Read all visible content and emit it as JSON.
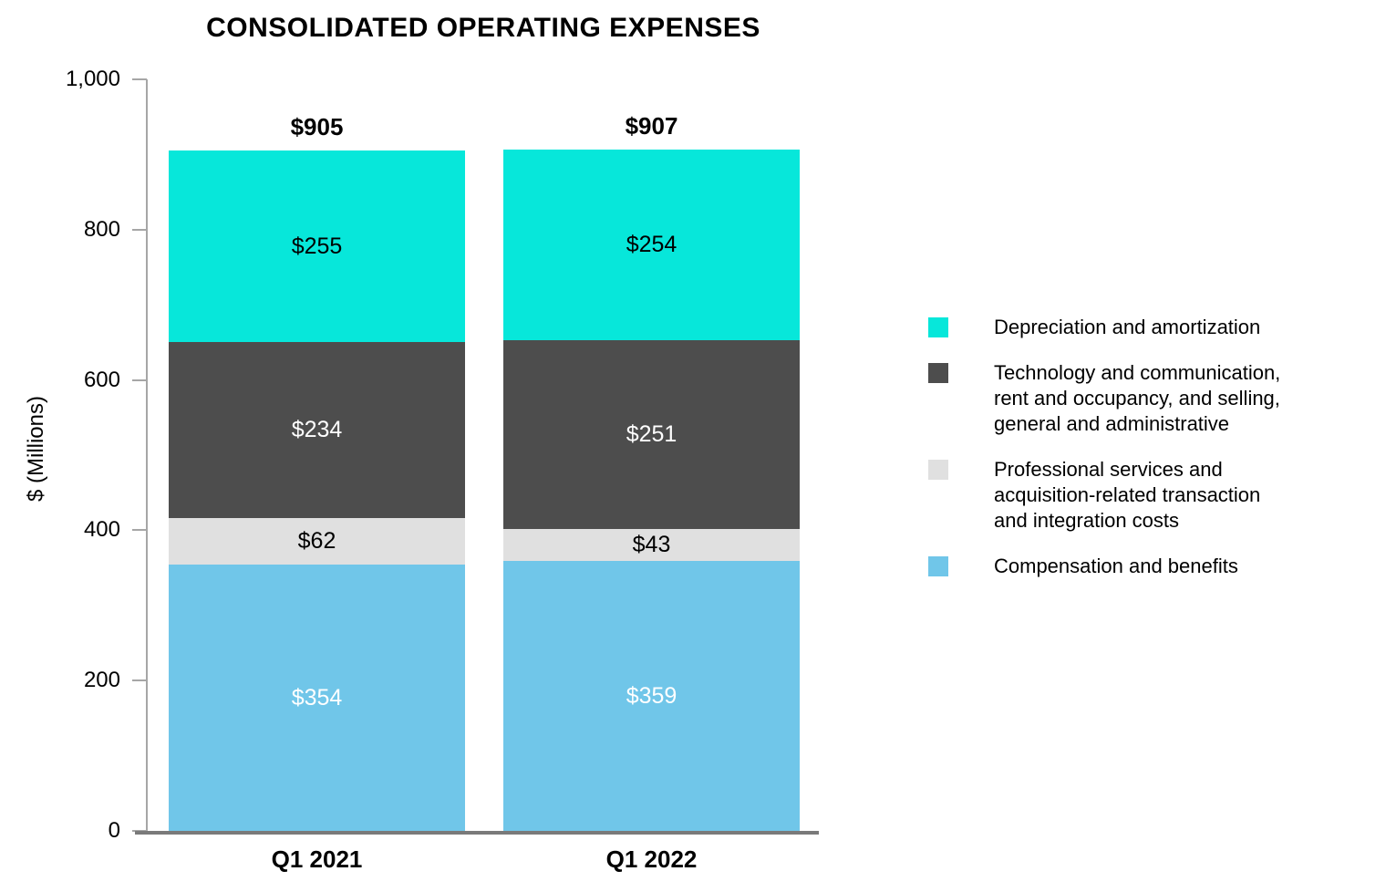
{
  "chart_data": {
    "type": "bar",
    "stacked": true,
    "title": "CONSOLIDATED OPERATING EXPENSES",
    "xlabel": "",
    "ylabel": "$ (Millions)",
    "ylim": [
      0,
      1000
    ],
    "grid": false,
    "ytick_values": [
      0,
      200,
      400,
      600,
      800,
      1000
    ],
    "ytick_labels": [
      "0",
      "200",
      "400",
      "600",
      "800",
      "1,000"
    ],
    "categories": [
      "Q1 2021",
      "Q1 2022"
    ],
    "totals": {
      "values": [
        905,
        907
      ],
      "labels": [
        "$905",
        "$907"
      ]
    },
    "series": [
      {
        "name": "Compensation and benefits",
        "color": "#70C6E9",
        "text_color": "#FFFFFF",
        "values": [
          354,
          359
        ],
        "labels": [
          "$354",
          "$359"
        ]
      },
      {
        "name": "Professional services and acquisition-related transaction and integration costs",
        "color": "#E0E0E0",
        "text_color": "#000000",
        "values": [
          62,
          43
        ],
        "labels": [
          "$62",
          "$43"
        ]
      },
      {
        "name": "Technology and communication, rent and occupancy, and selling, general and administrative",
        "color": "#4D4D4D",
        "text_color": "#FFFFFF",
        "values": [
          234,
          251
        ],
        "labels": [
          "$234",
          "$251"
        ]
      },
      {
        "name": "Depreciation and amortization",
        "color": "#07E7DA",
        "text_color": "#000000",
        "values": [
          255,
          254
        ],
        "labels": [
          "$255",
          "$254"
        ]
      }
    ],
    "legend": {
      "position": "right",
      "items": [
        {
          "color": "#07E7DA",
          "lines": [
            "Depreciation and amortization"
          ]
        },
        {
          "color": "#4D4D4D",
          "lines": [
            "Technology and communication,",
            "rent and occupancy, and selling,",
            "general and administrative"
          ]
        },
        {
          "color": "#E0E0E0",
          "lines": [
            "Professional services and",
            "acquisition-related transaction",
            "and integration costs"
          ]
        },
        {
          "color": "#70C6E9",
          "lines": [
            "Compensation and benefits"
          ]
        }
      ]
    }
  }
}
